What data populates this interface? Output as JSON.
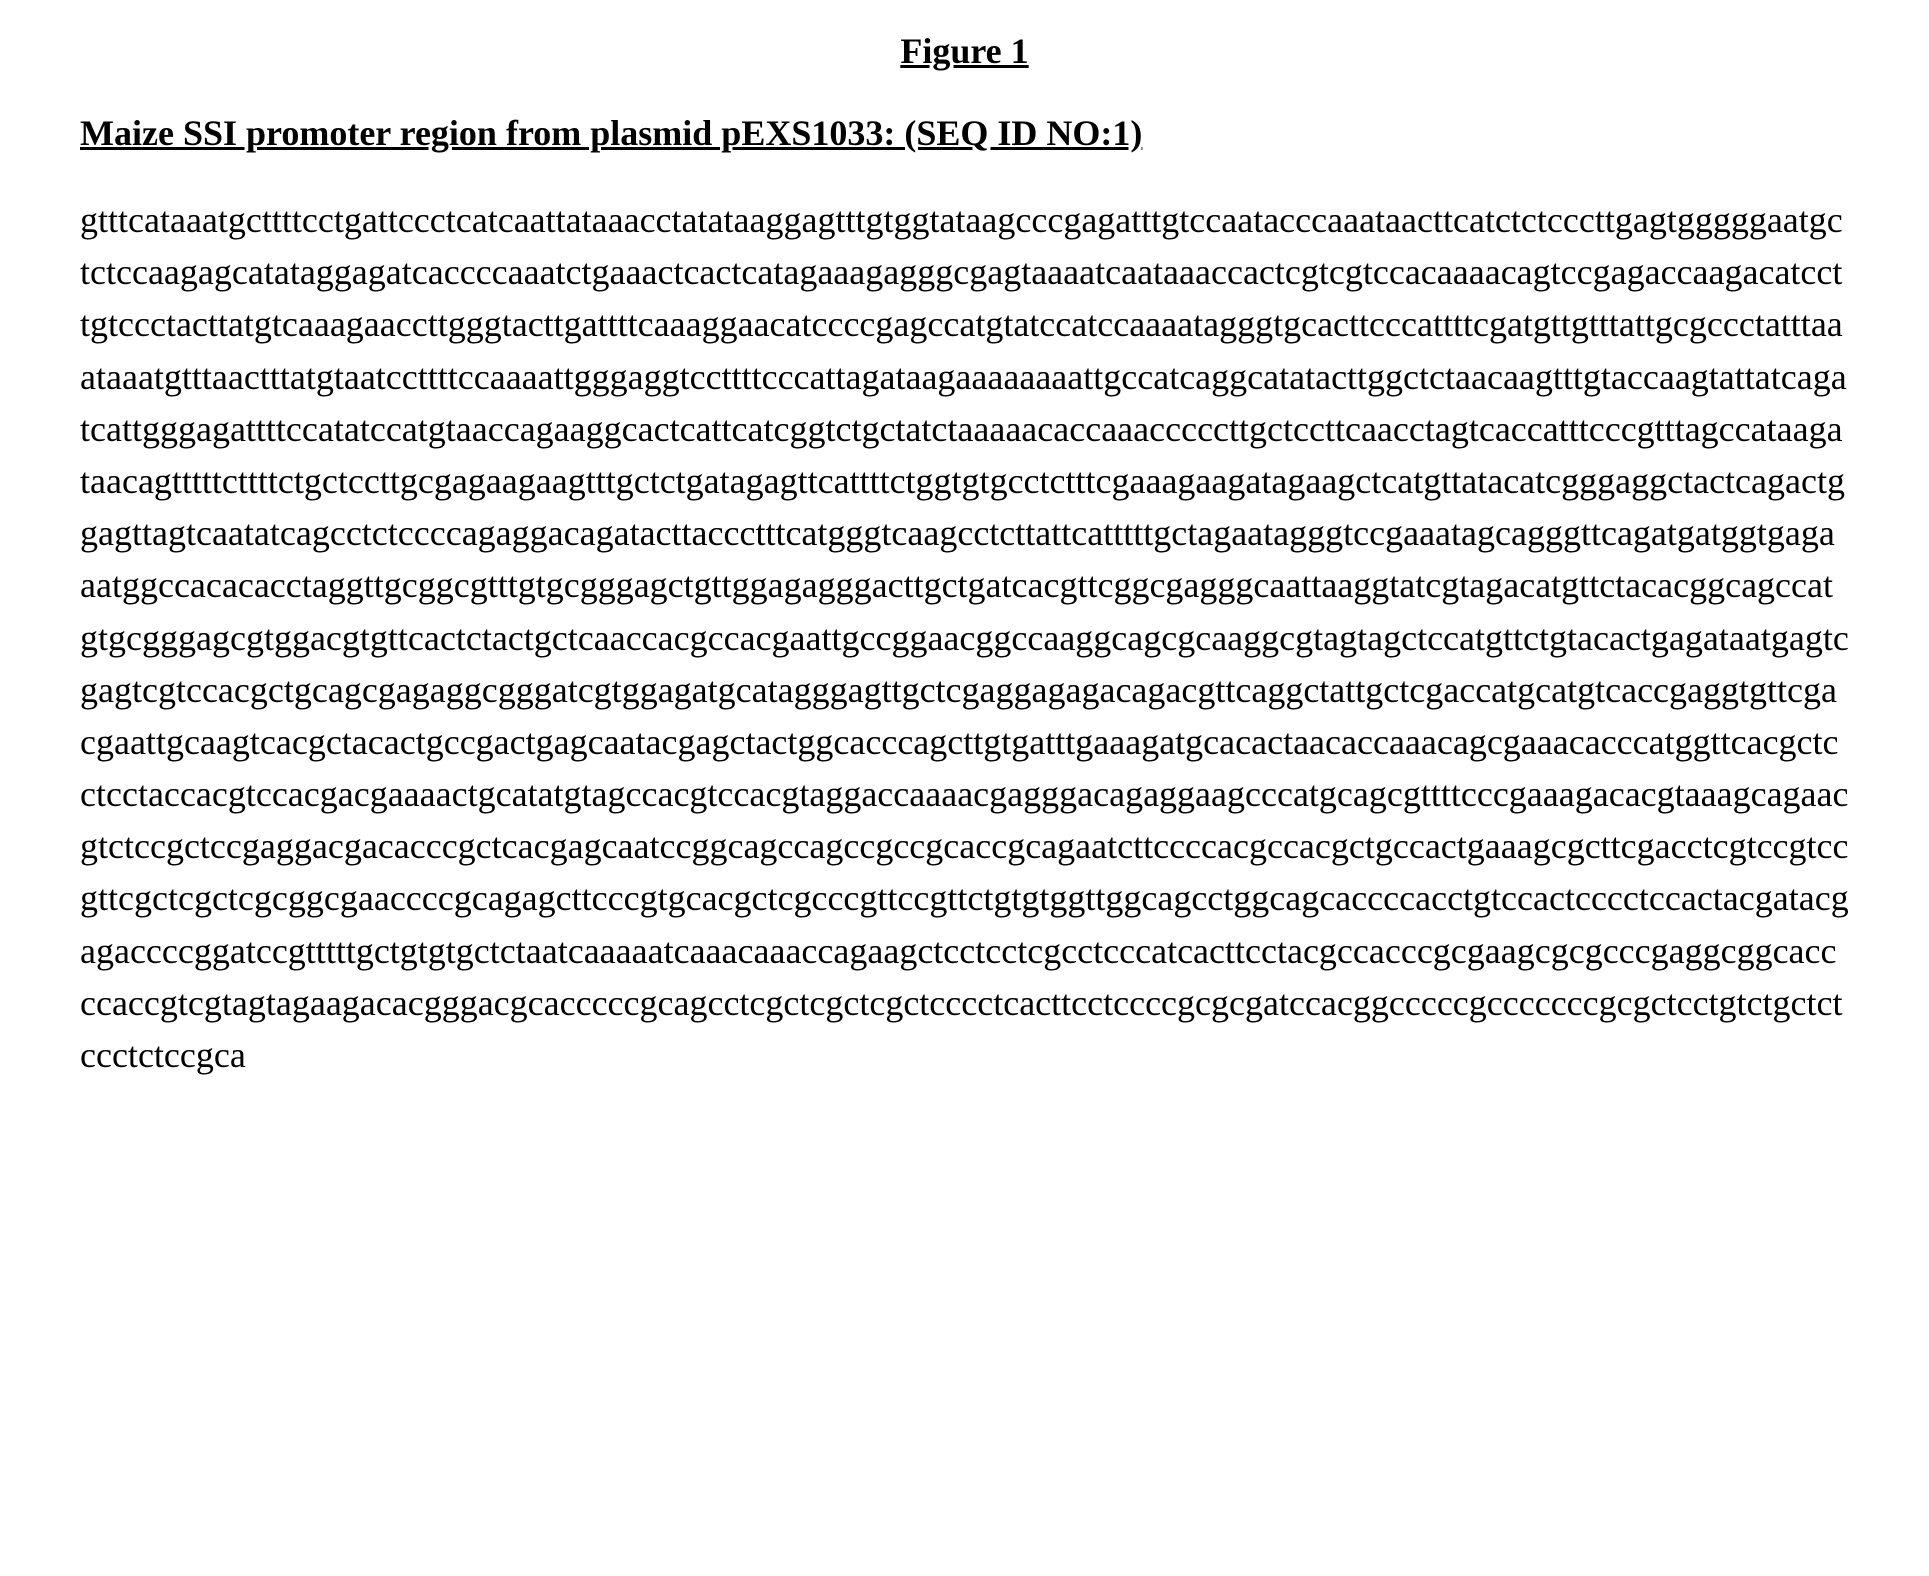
{
  "figure": {
    "title": "Figure 1",
    "subtitle": "Maize SSI promoter region from plasmid pEXS1033: (SEQ ID NO:1)",
    "title_fontsize": 36,
    "title_fontweight": "bold",
    "title_underline": true,
    "subtitle_fontsize": 36,
    "subtitle_fontweight": "bold",
    "subtitle_underline": true,
    "sequence_fontsize": 36,
    "sequence_lineheight": 1.45,
    "font_family": "Times New Roman",
    "text_color": "#000000",
    "background_color": "#ffffff",
    "sequence": "gtttcataaatgcttttcctgattccctcatcaattataaacctatataaggagtttgtggtataagcccgagatttgtccaatacccaaataacttcatctctcccttgagtgggggaatgctctccaagagcatataggagatcaccccaaatctgaaactcactcatagaaagagggcgagtaaaatcaataaaccactcgtcgtccacaaaacagtccgagaccaagacatccttgtccctacttatgtcaaagaaccttgggtacttgattttcaaaggaacatccccgagccatgtatccatccaaaatagggtgcacttcccattttcgatgttgtttattgcgccctatttaaataaatgtttaactttatgtaatccttttccaaaattgggaggtccttttcccattagataagaaaaaaaattgccatcaggcatatacttggctctaacaagtttgtaccaagtattatcagatcattgggagattttccatatccatgtaaccagaaggcactcattcatcggtctgctatctaaaaacaccaaacccccttgctccttcaacctagtcaccatttcccgtttagccataagataacagtttttcttttctgctccttgcgagaagaagtttgctctgatagagttcattttctggtgtgcctctttcgaaagaagatagaagctcatgttatacatcgggaggctactcagactggagttagtcaatatcagcctctccccagaggacagatacttaccctttcatgggtcaagcctcttattcatttttgctagaatagggtccgaaatagcagggttcagatgatggtgagaaatggccacacacctaggttgcggcgtttgtgcgggagctgttggagagggacttgctgatcacgttcggcgagggcaattaaggtatcgtagacatgttctacacggcagccatgtgcgggagcgtggacgtgttcactctactgctcaaccacgccacgaattgccggaacggccaaggcagcgcaaggcgtagtagctccatgttctgtacactgagataatgagtcgagtcgtccacgctgcagcgagaggcgggatcgtggagatgcatagggagttgctcgaggagagacagacgttcaggctattgctcgaccatgcatgtcaccgaggtgttcgacgaattgcaagtcacgctacactgccgactgagcaatacgagctactggcacccagcttgtgatttgaaagatgcacactaacaccaaacagcgaaacacccatggttcacgctcctcctaccacgtccacgacgaaaactgcatatgtagccacgtccacgtaggaccaaaacgagggacagaggaagcccatgcagcgttttcccgaaagacacgtaaagcagaacgtctccgctccgaggacgacacccgctcacgagcaatccggcagccagccgccgcaccgcagaatcttccccacgccacgctgccactgaaagcgcttcgacctcgtccgtccgttcgctcgctcgcggcgaaccccgcagagcttcccgtgcacgctcgcccgttccgttctgtgtggttggcagcctggcagcaccccacctgtccactcccctccactacgatacgagaccccggatccgtttttgctgtgtgctctaatcaaaaatcaaacaaaccagaagctcctcctcgcctcccatcacttcctacgccacccgcgaagcgcgcccgaggcggcaccccaccgtcgtagtagaagacacgggacgcacccccgcagcctcgctcgctcgctcccctcacttcctccccgcgcgatccacggcccccgcccccccgcgctcctgtctgctctccctctccgca"
  }
}
